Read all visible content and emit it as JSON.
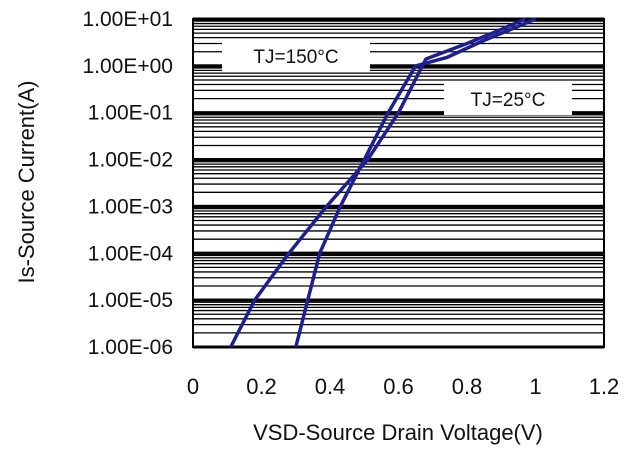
{
  "chart_data": {
    "type": "line",
    "title": "",
    "xlabel": "VSD-Source Drain Voltage(V)",
    "ylabel": "Is-Source Current(A)",
    "xlim": [
      0,
      1.2
    ],
    "ylim": [
      1e-06,
      10
    ],
    "yscale": "log",
    "grid": true,
    "x_ticks": [
      "0",
      "0.2",
      "0.4",
      "0.6",
      "0.8",
      "1",
      "1.2"
    ],
    "y_ticks": [
      "1.00E-06",
      "1.00E-05",
      "1.00E-04",
      "1.00E-03",
      "1.00E-02",
      "1.00E-01",
      "1.00E+00",
      "1.00E+01"
    ],
    "series": [
      {
        "name": "TJ=150°C",
        "color": "#1f1f8f",
        "x": [
          0.11,
          0.18,
          0.28,
          0.39,
          0.51,
          0.6,
          0.68,
          0.8,
          0.9,
          0.97
        ],
        "y": [
          1e-06,
          1e-05,
          0.0001,
          0.001,
          0.01,
          0.1,
          1.4,
          3.0,
          6.0,
          10
        ]
      },
      {
        "name": "TJ=25°C",
        "color": "#1f1f8f",
        "x": [
          0.3,
          0.37,
          0.43,
          0.5,
          0.57,
          0.65,
          0.74,
          0.85,
          0.95,
          1.0
        ],
        "y": [
          1e-06,
          0.0001,
          0.001,
          0.01,
          0.1,
          1.0,
          1.5,
          3.5,
          7.0,
          10
        ]
      }
    ]
  }
}
